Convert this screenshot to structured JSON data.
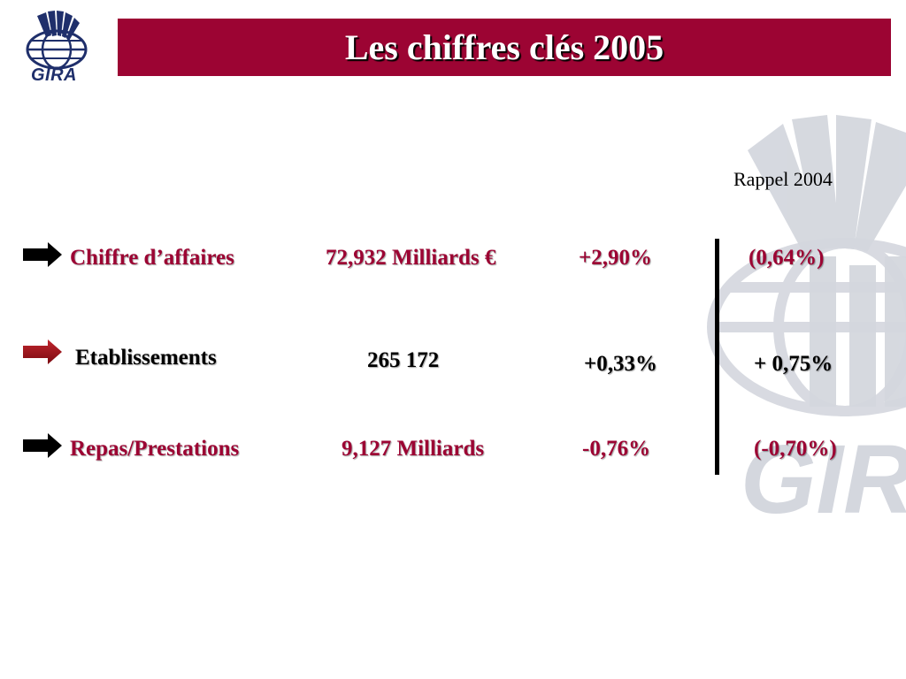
{
  "logo": {
    "text": "GIRA",
    "icon": "gira-globe-logo"
  },
  "title": "Les chiffres clés 2005",
  "watermark": {
    "text": "GIRA",
    "icon": "gira-watermark-logo"
  },
  "column_header": "Rappel 2004",
  "rows": [
    {
      "label": "Chiffre d’affaires",
      "value": "72,932 Milliards €",
      "change": "+2,90%",
      "rappel": "(0,64%)",
      "bullet": "arrow-right-icon",
      "color": "#9c0433"
    },
    {
      "label": "Etablissements",
      "value": "265 172",
      "change": "+0,33%",
      "rappel": "+ 0,75%",
      "bullet": "arrow-right-icon",
      "color": "#000000"
    },
    {
      "label": "Repas/Prestations",
      "value": "9,127 Milliards",
      "change": "-0,76%",
      "rappel": "(-0,70%)",
      "bullet": "arrow-right-icon",
      "color": "#9c0433"
    }
  ],
  "colors": {
    "accent": "#9c0433",
    "title_text": "#ffffff",
    "logo_blue": "#1f2f6b",
    "watermark_gray": "#c9cdd6"
  }
}
